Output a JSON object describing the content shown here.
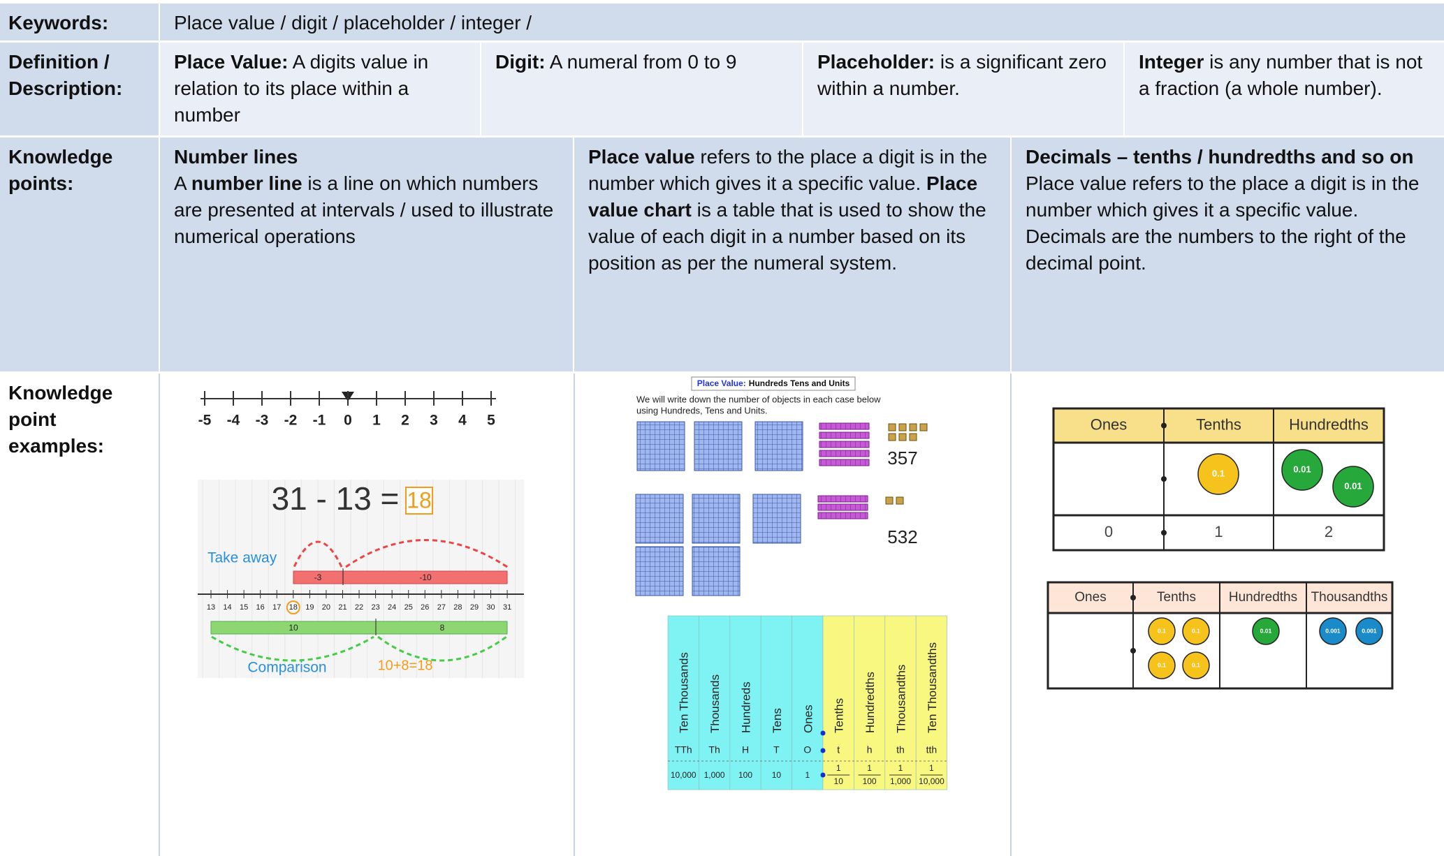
{
  "labels": {
    "keywords": "Keywords:",
    "definition": "Definition / Description:",
    "knowledge_points": "Knowledge points:",
    "examples": "Knowledge point examples:"
  },
  "keywords": "Place value /  digit /  placeholder /  integer /",
  "definitions": [
    {
      "term": "Place Value:",
      "text": "A digits value in relation to its place within a number"
    },
    {
      "term": "Digit:",
      "text": "A numeral from 0 to 9"
    },
    {
      "term": "Placeholder:",
      "text": "is a significant zero within a number."
    },
    {
      "term": "Integer",
      "text": "is any number that is not a fraction (a whole number)."
    }
  ],
  "knowledge_points": [
    {
      "heading": "Number lines",
      "runs": [
        {
          "text": "A "
        },
        {
          "text": "number line",
          "bold": true
        },
        {
          "text": " is a line on which numbers are presented at intervals / used to illustrate numerical operations"
        }
      ]
    },
    {
      "runs": [
        {
          "text": "Place value",
          "bold": true
        },
        {
          "text": " refers to the place a digit is in the number which gives it a  specific value. "
        },
        {
          "text": "Place value chart",
          "bold": true
        },
        {
          "text": " is a table that is used to show the value of each digit in a number based on its position as per the numeral system."
        }
      ]
    },
    {
      "heading": "Decimals – tenths /  hundredths and so on",
      "runs": [
        {
          "text": "Place value refers to the place a digit is in the number which gives it a  specific value.  Decimals are the numbers to the right of the decimal point."
        }
      ]
    }
  ],
  "examples": {
    "number_line": {
      "ticks": [
        -5,
        -4,
        -3,
        -2,
        -1,
        0,
        1,
        2,
        3,
        4,
        5
      ]
    },
    "subtraction": {
      "equation": "31 - 13 =",
      "answer": "18",
      "take_away": "Take away",
      "jumps": [
        "-3",
        "-10"
      ],
      "ticks": [
        13,
        14,
        15,
        16,
        17,
        18,
        19,
        20,
        21,
        22,
        23,
        24,
        25,
        26,
        27,
        28,
        29,
        30,
        31
      ],
      "parts": [
        "10",
        "8"
      ],
      "comparison": "Comparison",
      "sum": "10+8=18"
    },
    "blocks": {
      "title_prefix": "Place Value:",
      "title": "Hundreds Tens and Units",
      "lines": [
        "We will write down the number of objects in each case below",
        "using Hundreds, Tens and Units."
      ],
      "numbers": [
        357,
        532
      ]
    },
    "place_value_chart": {
      "columns": [
        {
          "name": "Ten Thousands",
          "abbr": "TTh",
          "value": "10,000"
        },
        {
          "name": "Thousands",
          "abbr": "Th",
          "value": "1,000"
        },
        {
          "name": "Hundreds",
          "abbr": "H",
          "value": "100"
        },
        {
          "name": "Tens",
          "abbr": "T",
          "value": "10"
        },
        {
          "name": "Ones",
          "abbr": "O",
          "value": "1"
        },
        {
          "name": "Tenths",
          "abbr": "t",
          "numerator": "1",
          "denominator": "10"
        },
        {
          "name": "Hundredths",
          "abbr": "h",
          "numerator": "1",
          "denominator": "100"
        },
        {
          "name": "Thousandths",
          "abbr": "th",
          "numerator": "1",
          "denominator": "1,000"
        },
        {
          "name": "Ten Thousandths",
          "abbr": "tth",
          "numerator": "1",
          "denominator": "10,000"
        }
      ]
    },
    "decimal_chart_1": {
      "headers": [
        "Ones",
        "Tenths",
        "Hundredths"
      ],
      "counters": {
        "Tenths": [
          "0.1"
        ],
        "Hundredths": [
          "0.01",
          "0.01"
        ]
      },
      "digits": [
        0,
        1,
        2
      ]
    },
    "decimal_chart_2": {
      "headers": [
        "Ones",
        "Tenths",
        "Hundredths",
        "Thousandths"
      ],
      "counters": {
        "Tenths": [
          "0.1",
          "0.1",
          "0.1",
          "0.1"
        ],
        "Hundredths": [
          "0.01"
        ],
        "Thousandths": [
          "0.001",
          "0.001"
        ]
      }
    }
  }
}
